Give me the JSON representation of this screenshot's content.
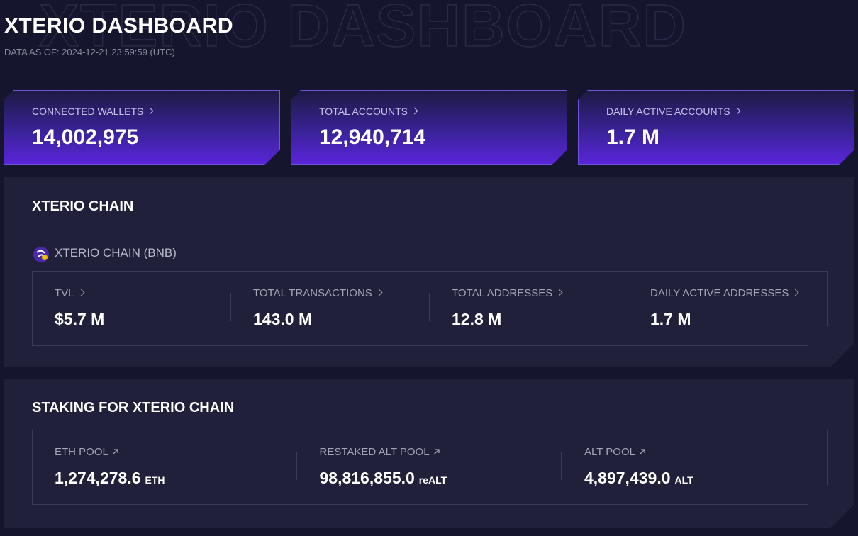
{
  "header": {
    "title": "XTERIO DASHBOARD",
    "data_as_of": "DATA AS OF: 2024-12-21 23:59:59 (UTC)"
  },
  "summary_cards": [
    {
      "label": "CONNECTED WALLETS",
      "value": "14,002,975"
    },
    {
      "label": "TOTAL ACCOUNTS",
      "value": "12,940,714"
    },
    {
      "label": "DAILY ACTIVE ACCOUNTS",
      "value": "1.7 M"
    }
  ],
  "chain": {
    "title": "XTERIO CHAIN",
    "network": "XTERIO CHAIN (BNB)",
    "stats": [
      {
        "label": "TVL",
        "value": "$5.7 M"
      },
      {
        "label": "TOTAL TRANSACTIONS",
        "value": "143.0 M"
      },
      {
        "label": "TOTAL ADDRESSES",
        "value": "12.8 M"
      },
      {
        "label": "DAILY ACTIVE ADDRESSES",
        "value": "1.7 M"
      }
    ]
  },
  "staking": {
    "title": "STAKING FOR XTERIO CHAIN",
    "pools": [
      {
        "label": "ETH POOL",
        "value": "1,274,278.6",
        "unit": "ETH"
      },
      {
        "label": "RESTAKED ALT POOL",
        "value": "98,816,855.0",
        "unit": "reALT"
      },
      {
        "label": "ALT POOL",
        "value": "4,897,439.0",
        "unit": "ALT"
      }
    ]
  }
}
